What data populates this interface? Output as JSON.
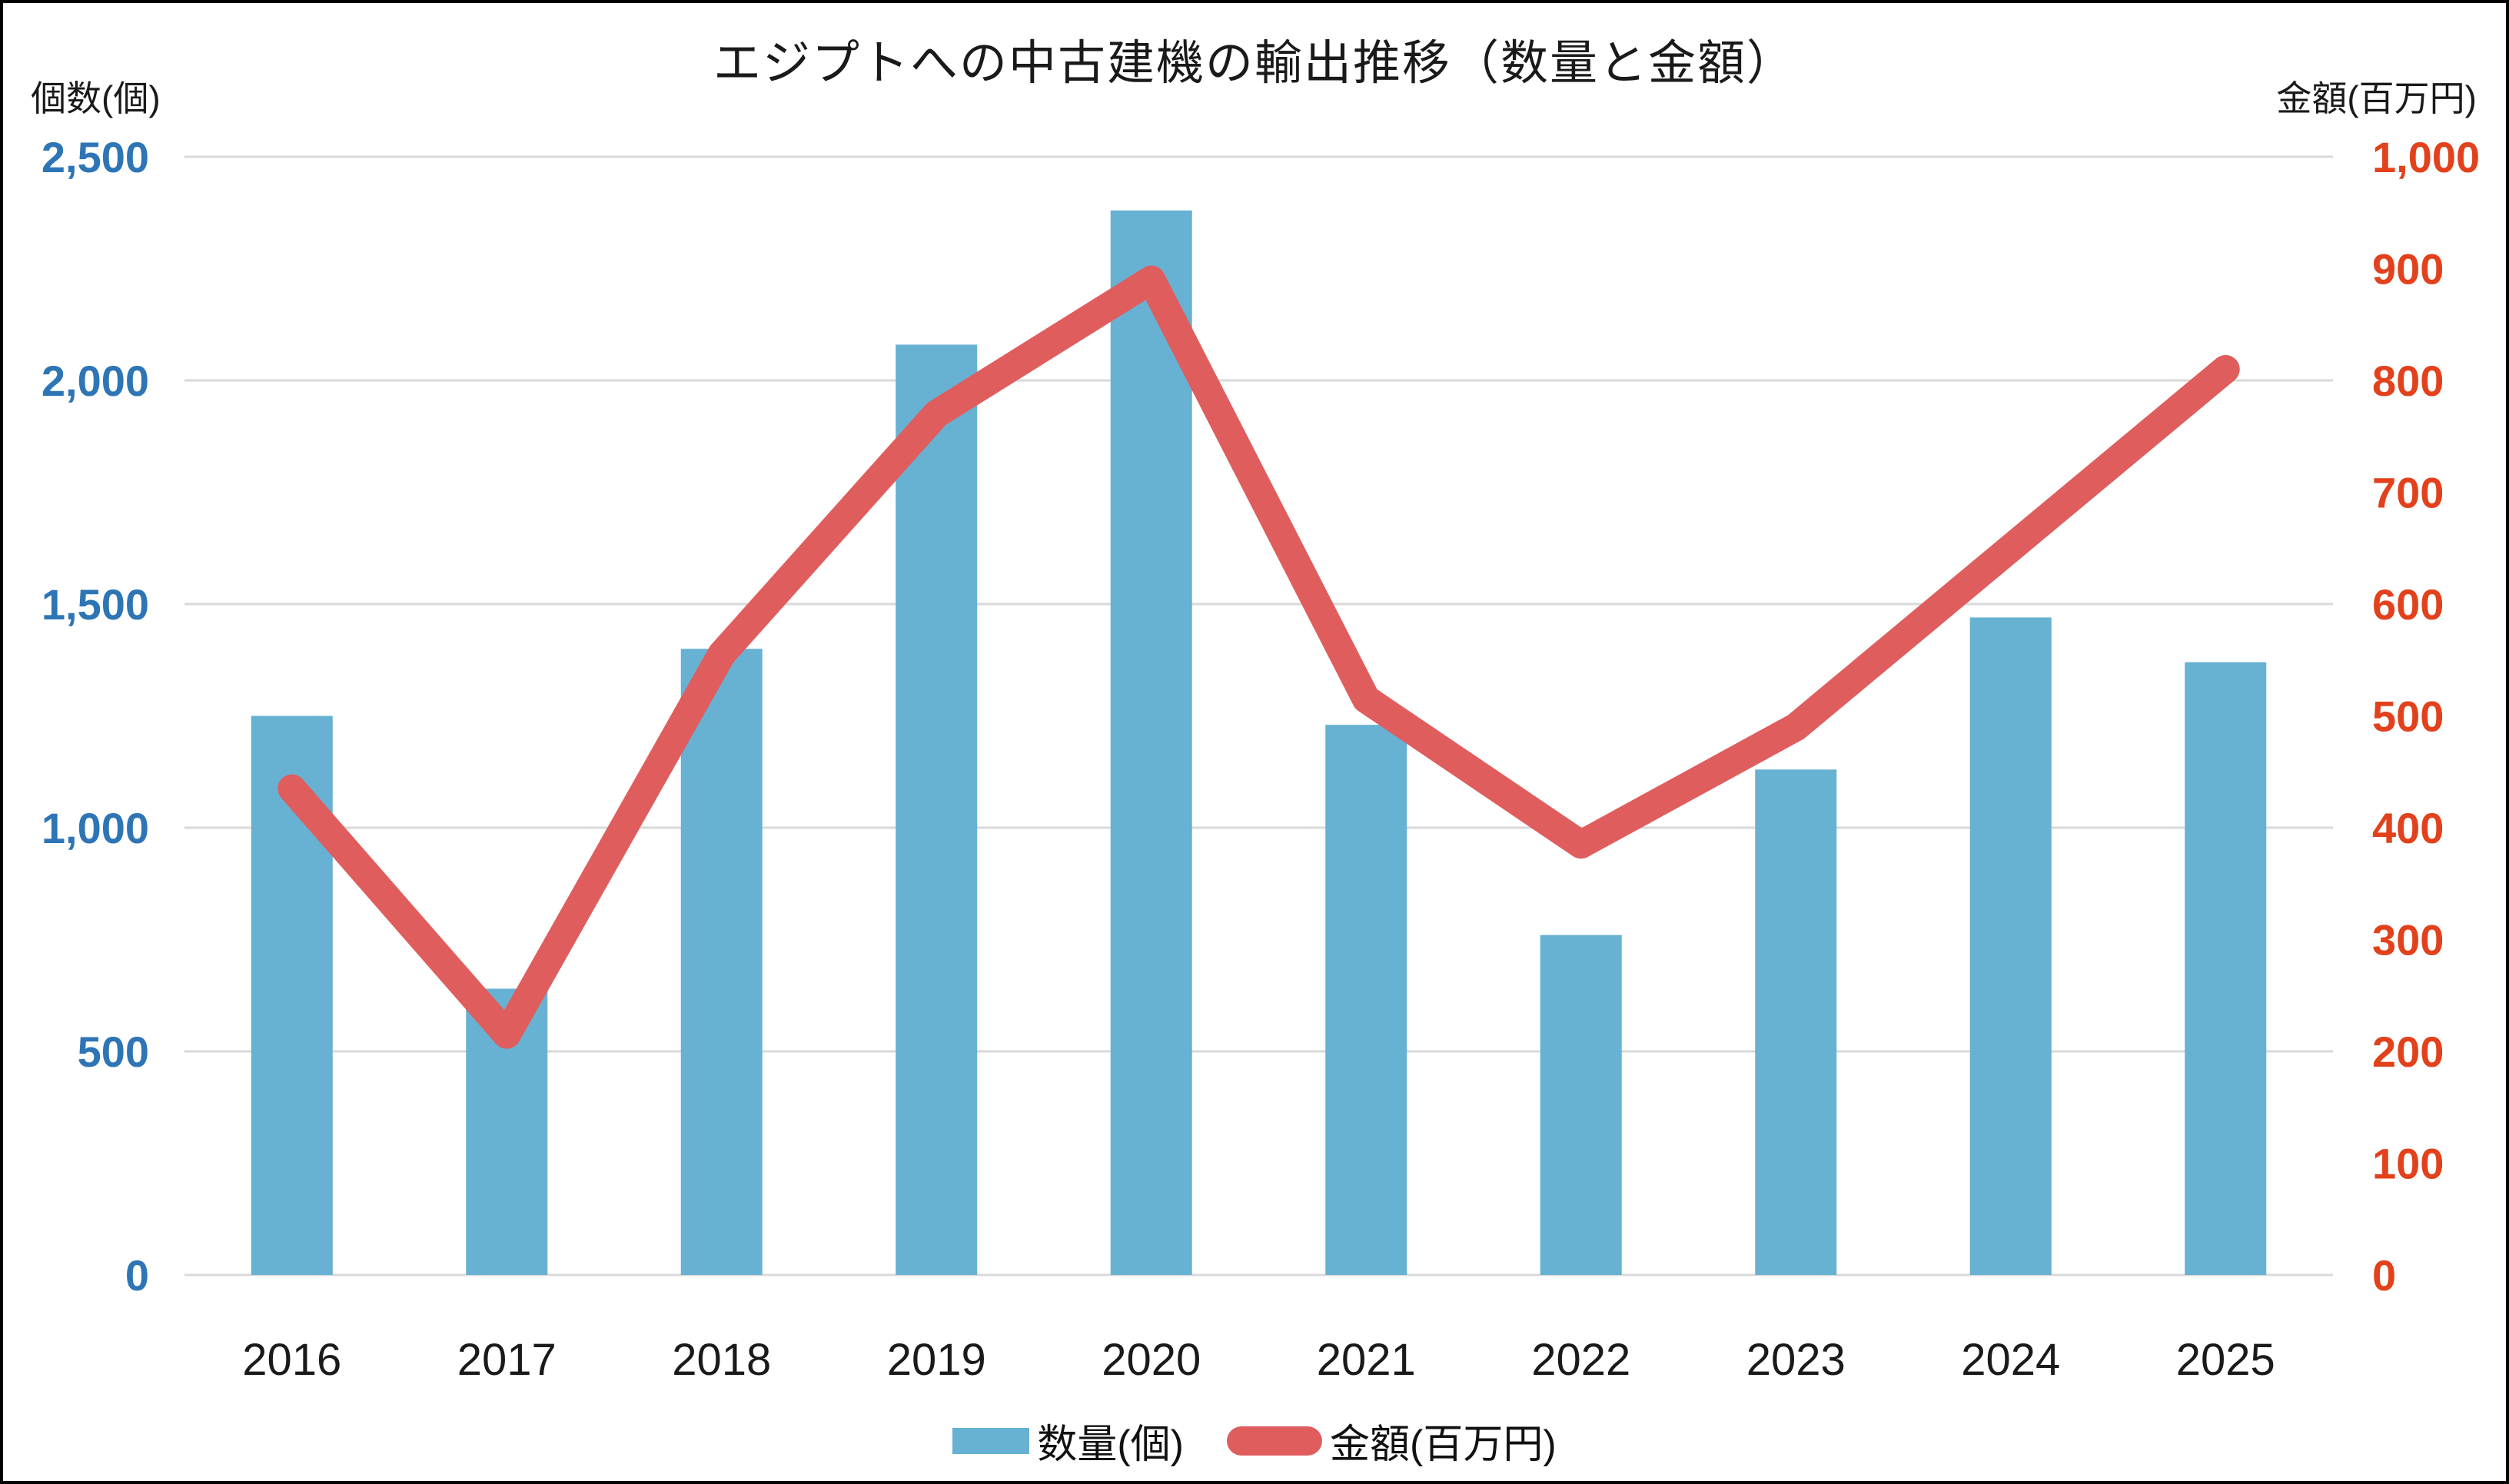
{
  "title": "エジプトへの中古建機の輸出推移（数量と金額）",
  "left_axis": {
    "unit_label": "個数(個)",
    "ticks": [
      "0",
      "500",
      "1,000",
      "1,500",
      "2,000",
      "2,500"
    ],
    "min": 0,
    "max": 2500,
    "step": 500,
    "color": "#2E75B6"
  },
  "right_axis": {
    "unit_label": "金額(百万円)",
    "ticks": [
      "0",
      "100",
      "200",
      "300",
      "400",
      "500",
      "600",
      "700",
      "800",
      "900",
      "1,000"
    ],
    "min": 0,
    "max": 1000,
    "step": 100,
    "color": "#E2411C"
  },
  "legend": {
    "items": [
      {
        "label": "数量(個)",
        "swatch": "bar",
        "color": "#67B1D3"
      },
      {
        "label": "金額(百万円)",
        "swatch": "line",
        "color": "#E05D5D"
      }
    ],
    "position": "bottom"
  },
  "chart_data": {
    "type": "combo-bar-line",
    "categories": [
      "2016",
      "2017",
      "2018",
      "2019",
      "2020",
      "2021",
      "2022",
      "2023",
      "2024",
      "2025"
    ],
    "series": [
      {
        "name": "数量(個)",
        "type": "bar",
        "axis": "left",
        "color": "#67B1D3",
        "values": [
          1250,
          640,
          1400,
          2080,
          2380,
          1230,
          760,
          1130,
          1470,
          1370
        ]
      },
      {
        "name": "金額(百万円)",
        "type": "line",
        "axis": "right",
        "color": "#E05D5D",
        "values": [
          435,
          215,
          555,
          770,
          890,
          515,
          385,
          490,
          650,
          810
        ]
      }
    ],
    "title": "エジプトへの中古建機の輸出推移（数量と金額）",
    "xlabel": "",
    "ylabel_left": "個数(個)",
    "ylabel_right": "金額(百万円)",
    "left_ylim": [
      0,
      2500
    ],
    "right_ylim": [
      0,
      1000
    ],
    "grid": true,
    "gridline_color": "#D9D9D9",
    "category_label_color": "#1a1a1a",
    "legend_position": "bottom"
  }
}
